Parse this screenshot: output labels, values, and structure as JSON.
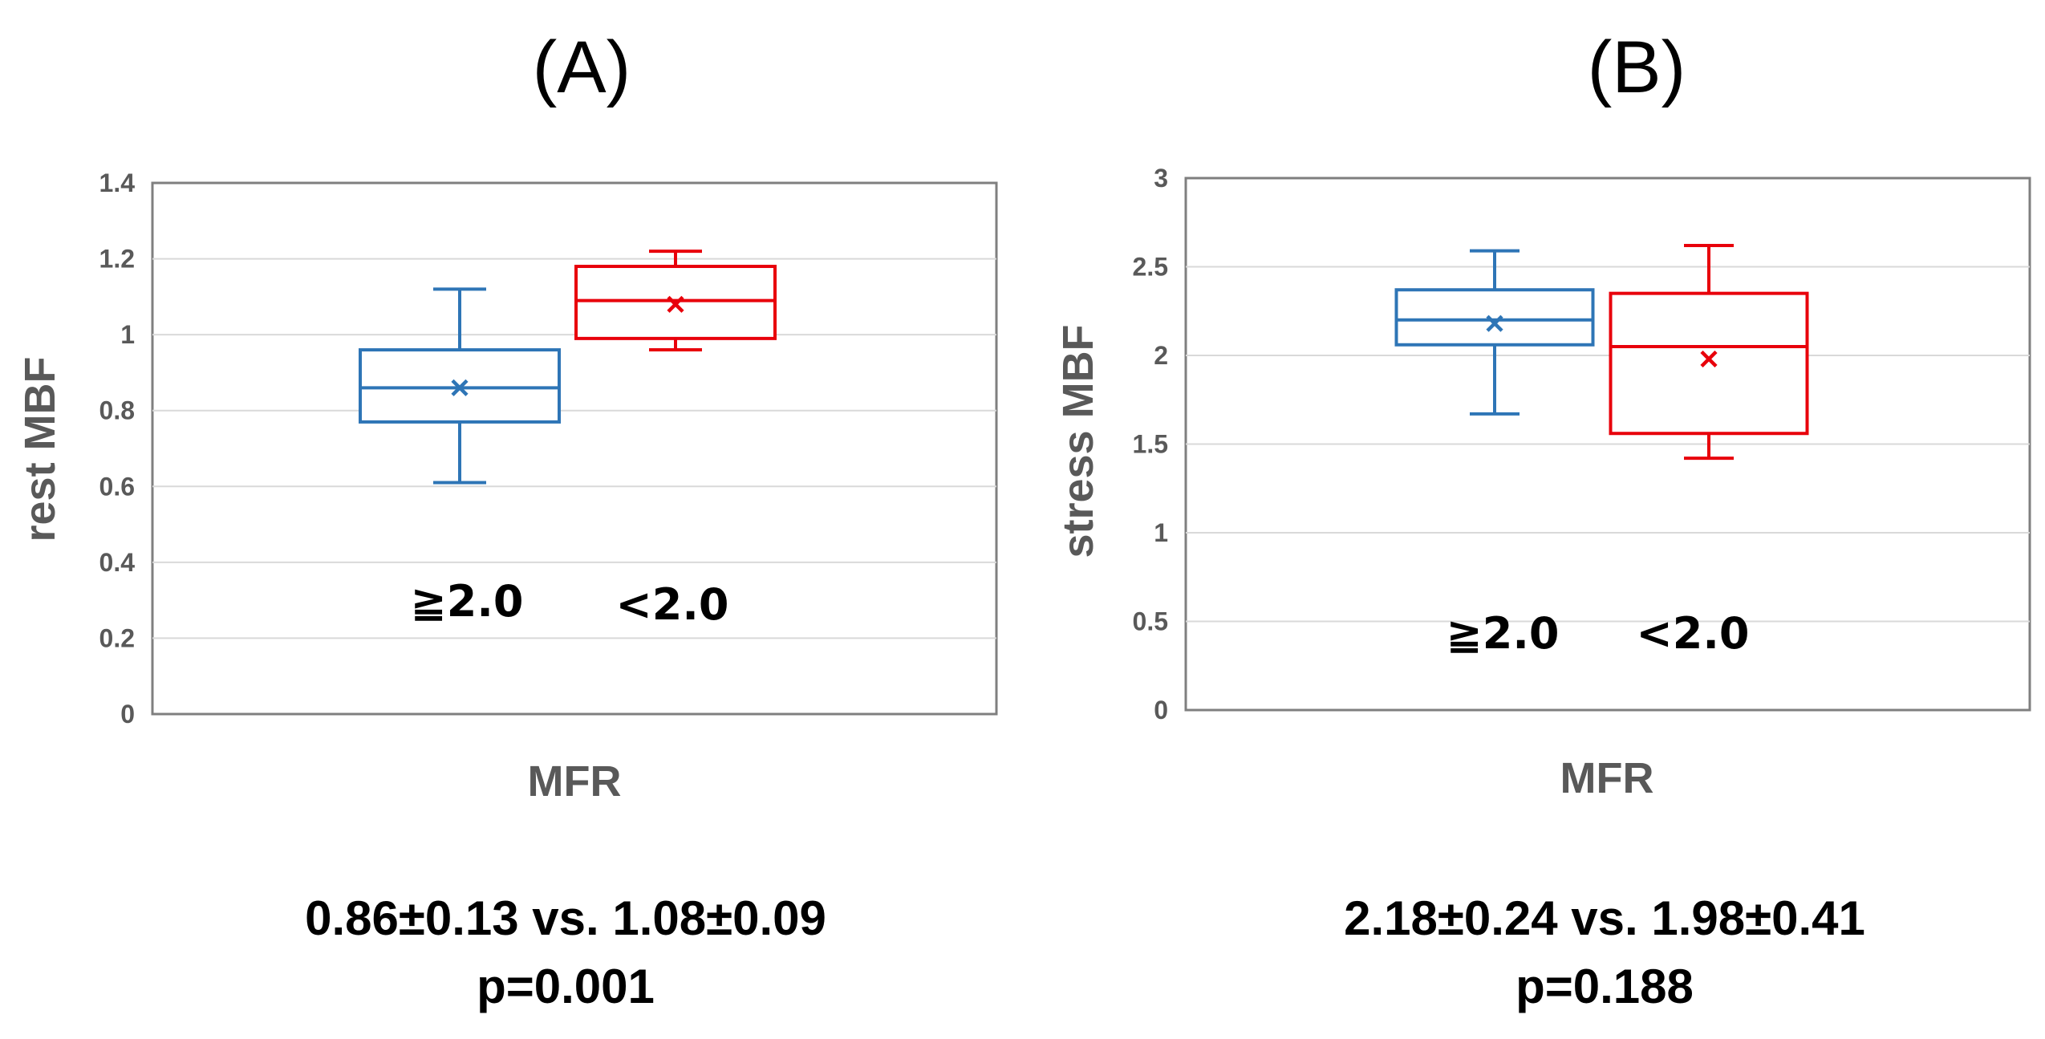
{
  "panels": [
    {
      "label": "(A)",
      "stats_line": "0.86±0.13 vs. 1.08±0.09",
      "p_value": "p=0.001"
    },
    {
      "label": "(B)",
      "stats_line": "2.18±0.24 vs. 1.98±0.41",
      "p_value": "p=0.188"
    }
  ],
  "chart_data": [
    {
      "type": "box",
      "title": "",
      "xlabel": "MFR",
      "ylabel": "rest MBF",
      "ylim": [
        0,
        1.4
      ],
      "yticks": [
        "0",
        "0.2",
        "0.4",
        "0.6",
        "0.8",
        "1",
        "1.2",
        "1.4"
      ],
      "grid": true,
      "categories": [
        "≧2.0",
        "<2.0"
      ],
      "series": [
        {
          "color": "#2E75B6",
          "min": 0.61,
          "q1": 0.77,
          "median": 0.86,
          "q3": 0.96,
          "max": 1.12,
          "mean": 0.86
        },
        {
          "color": "#E8000B",
          "min": 0.96,
          "q1": 0.99,
          "median": 1.09,
          "q3": 1.18,
          "max": 1.22,
          "mean": 1.08
        }
      ]
    },
    {
      "type": "box",
      "title": "",
      "xlabel": "MFR",
      "ylabel": "stress MBF",
      "ylim": [
        0,
        3
      ],
      "yticks": [
        "0",
        "0.5",
        "1",
        "1.5",
        "2",
        "2.5",
        "3"
      ],
      "grid": true,
      "categories": [
        "≧2.0",
        "<2.0"
      ],
      "series": [
        {
          "color": "#2E75B6",
          "min": 1.67,
          "q1": 2.06,
          "median": 2.2,
          "q3": 2.37,
          "max": 2.59,
          "mean": 2.18
        },
        {
          "color": "#E8000B",
          "min": 1.42,
          "q1": 1.56,
          "median": 2.05,
          "q3": 2.35,
          "max": 2.62,
          "mean": 1.98
        }
      ]
    }
  ]
}
